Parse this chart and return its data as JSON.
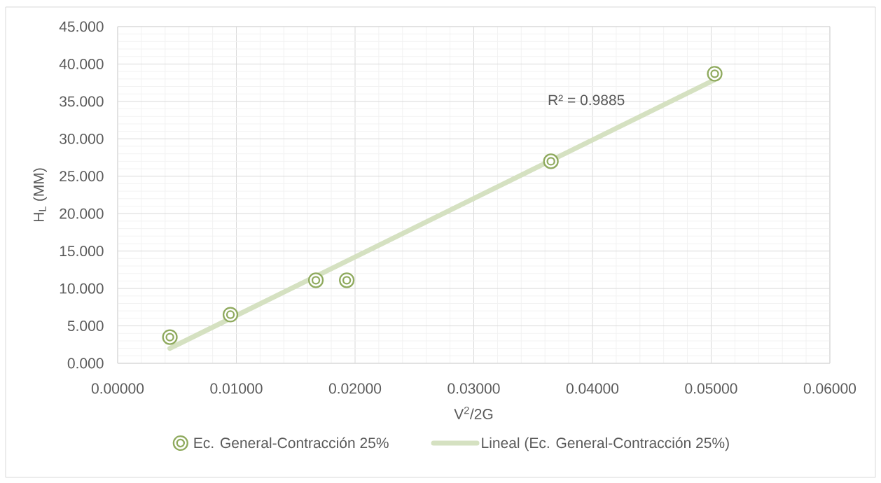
{
  "chart_data": {
    "type": "scatter",
    "xlabel": "V$^{2}$/2G",
    "ylabel": "H$_{L}$ (MM)",
    "x": [
      0.0044,
      0.0095,
      0.0167,
      0.0193,
      0.0365,
      0.0503
    ],
    "series": [
      {
        "name": "Ec. General-Contracción 25%",
        "color": "#8faa5e",
        "marker": "circle",
        "values": [
          3.5,
          6.5,
          11.1,
          11.1,
          27.0,
          38.7
        ]
      },
      {
        "name": "Lineal (Ec. General-Contracción 25%)",
        "type": "line",
        "color": "#d5e1c1",
        "marker": "none",
        "x": [
          0.0044,
          0.0503
        ],
        "values": [
          2.0,
          37.9
        ]
      }
    ],
    "xlim": [
      0,
      0.06
    ],
    "xticks": [
      {
        "value": 0,
        "label": "0.00000"
      },
      {
        "value": 0.01,
        "label": "0.01000"
      },
      {
        "value": 0.02,
        "label": "0.02000"
      },
      {
        "value": 0.03,
        "label": "0.03000"
      },
      {
        "value": 0.04,
        "label": "0.04000"
      },
      {
        "value": 0.05,
        "label": "0.05000"
      },
      {
        "value": 0.06,
        "label": "0.06000"
      }
    ],
    "ylim": [
      0,
      45
    ],
    "yticks": [
      {
        "value": 0,
        "label": "0.000"
      },
      {
        "value": 5,
        "label": "5.000"
      },
      {
        "value": 10,
        "label": "10.000"
      },
      {
        "value": 15,
        "label": "15.000"
      },
      {
        "value": 20,
        "label": "20.000"
      },
      {
        "value": 25,
        "label": "25.000"
      },
      {
        "value": 30,
        "label": "30.000"
      },
      {
        "value": 35,
        "label": "35.000"
      },
      {
        "value": 40,
        "label": "40.000"
      },
      {
        "value": 45,
        "label": "45.000"
      }
    ],
    "annotations": [
      "R² = 0.9885"
    ],
    "grid": true,
    "legend": "bottom"
  }
}
